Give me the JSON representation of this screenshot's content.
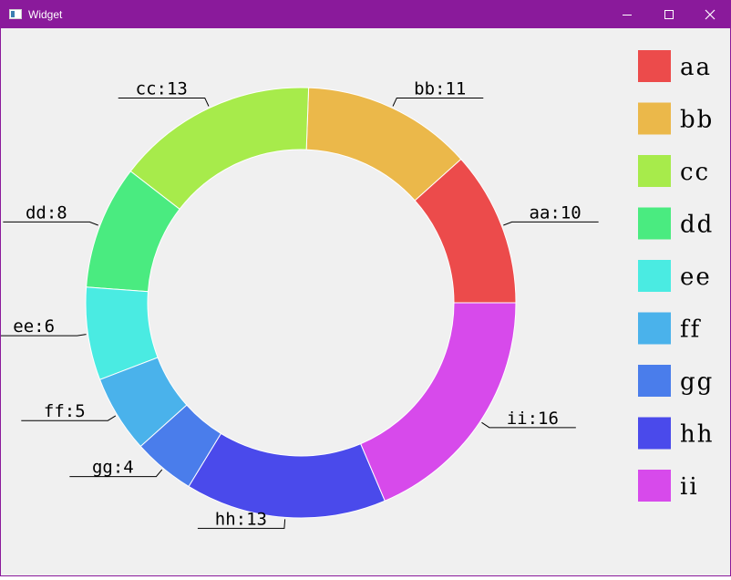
{
  "window": {
    "title": "Widget"
  },
  "chart_data": {
    "type": "pie",
    "variant": "donut",
    "categories": [
      "aa",
      "bb",
      "cc",
      "dd",
      "ee",
      "ff",
      "gg",
      "hh",
      "ii"
    ],
    "values": [
      10,
      11,
      13,
      8,
      6,
      5,
      4,
      13,
      16
    ],
    "colors": [
      "#ec4b4b",
      "#ebb84a",
      "#a7eb4b",
      "#4aeb80",
      "#4aebe2",
      "#4ab2eb",
      "#4a7deb",
      "#4a4aeb",
      "#d74aeb"
    ],
    "slice_labels": [
      "aa:10",
      "bb:11",
      "cc:13",
      "dd:8",
      "ee:6",
      "ff:5",
      "gg:4",
      "hh:13",
      "ii:16"
    ],
    "legend": {
      "position": "right",
      "entries": [
        "aa",
        "bb",
        "cc",
        "dd",
        "ee",
        "ff",
        "gg",
        "hh",
        "ii"
      ]
    }
  }
}
